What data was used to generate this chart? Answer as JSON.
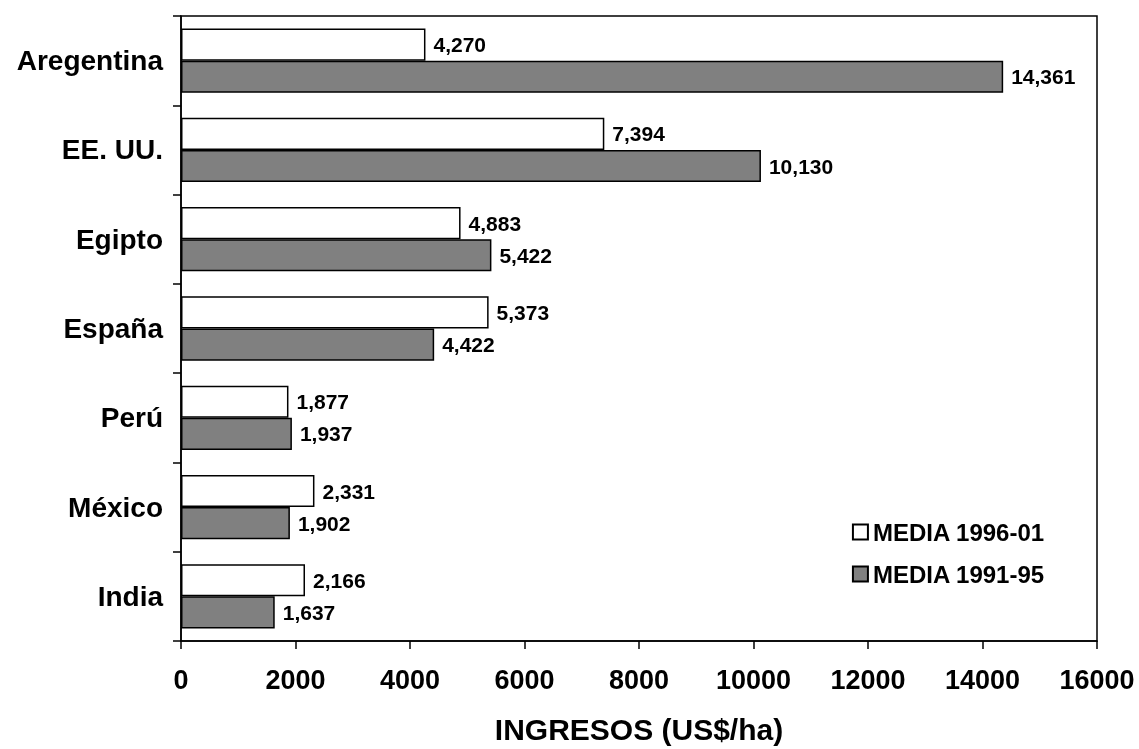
{
  "chart_data": {
    "type": "bar",
    "orientation": "horizontal",
    "categories": [
      "Aregentina",
      "EE. UU.",
      "Egipto",
      "España",
      "Perú",
      "México",
      "India"
    ],
    "series": [
      {
        "name": "MEDIA 1996-01",
        "color": "#ffffff",
        "values": [
          4270,
          7394,
          4883,
          5373,
          1877,
          2331,
          2166
        ],
        "value_labels": [
          "4,270",
          "7,394",
          "4,883",
          "5,373",
          "1,877",
          "2,331",
          "2,166"
        ]
      },
      {
        "name": "MEDIA 1991-95",
        "color": "#808080",
        "values": [
          14361,
          10130,
          5422,
          4422,
          1937,
          1902,
          1637
        ],
        "value_labels": [
          "14,361",
          "10,130",
          "5,422",
          "4,422",
          "1,937",
          "1,902",
          "1,637"
        ]
      }
    ],
    "xlabel": "INGRESOS (US$/ha)",
    "xlim": [
      0,
      16000
    ],
    "xticks": [
      0,
      2000,
      4000,
      6000,
      8000,
      10000,
      12000,
      14000,
      16000
    ],
    "legend": "bottom right"
  }
}
